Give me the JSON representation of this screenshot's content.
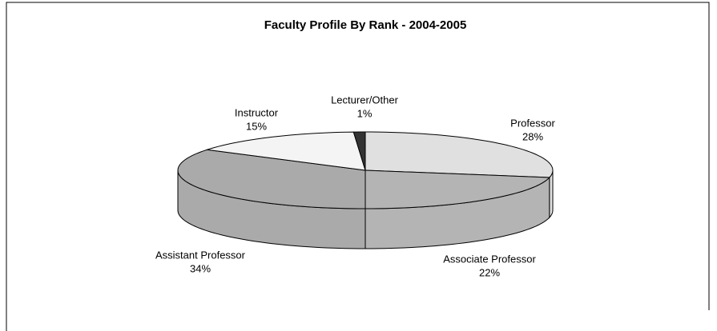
{
  "chart_data": {
    "type": "pie3d",
    "title": "Faculty Profile By Rank - 2004-2005",
    "categories": [
      "Professor",
      "Associate Professor",
      "Assistant Professor",
      "Instructor",
      "Lecturer/Other"
    ],
    "values": [
      28,
      22,
      34,
      15,
      1
    ],
    "value_labels": [
      "28%",
      "22%",
      "34%",
      "15%",
      "1%"
    ],
    "colors": [
      "#e0e0e0",
      "#b4b4b4",
      "#aaaaaa",
      "#f4f4f4",
      "#333333"
    ]
  }
}
